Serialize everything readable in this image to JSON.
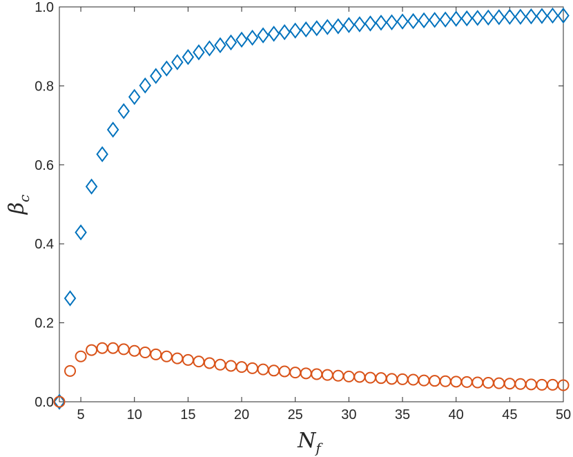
{
  "chart_data": {
    "type": "scatter",
    "xlabel": "N",
    "xlabel_sub": "f",
    "ylabel": "β",
    "ylabel_sub": "c",
    "xlim": [
      3,
      50
    ],
    "ylim": [
      0,
      1
    ],
    "xticks": [
      5,
      10,
      15,
      20,
      25,
      30,
      35,
      40,
      45,
      50
    ],
    "yticks": [
      0.0,
      0.2,
      0.4,
      0.6,
      0.8,
      1.0
    ],
    "ytick_labels": [
      "0.0",
      "0.2",
      "0.4",
      "0.6",
      "0.8",
      "1.0"
    ],
    "grid": false,
    "series": [
      {
        "marker": "diamond",
        "color": "#0072BD",
        "x": [
          3,
          4,
          5,
          6,
          7,
          8,
          9,
          10,
          11,
          12,
          13,
          14,
          15,
          16,
          17,
          18,
          19,
          20,
          21,
          22,
          23,
          24,
          25,
          26,
          27,
          28,
          29,
          30,
          31,
          32,
          33,
          34,
          35,
          36,
          37,
          38,
          39,
          40,
          41,
          42,
          43,
          44,
          45,
          46,
          47,
          48,
          49,
          50
        ],
        "y": [
          0.0,
          0.262,
          0.429,
          0.545,
          0.627,
          0.689,
          0.736,
          0.772,
          0.801,
          0.825,
          0.844,
          0.86,
          0.873,
          0.885,
          0.895,
          0.903,
          0.91,
          0.917,
          0.922,
          0.928,
          0.932,
          0.936,
          0.94,
          0.943,
          0.946,
          0.949,
          0.951,
          0.954,
          0.956,
          0.958,
          0.96,
          0.961,
          0.963,
          0.964,
          0.966,
          0.967,
          0.968,
          0.97,
          0.971,
          0.972,
          0.973,
          0.974,
          0.975,
          0.975,
          0.976,
          0.977,
          0.978,
          0.978
        ]
      },
      {
        "marker": "circle",
        "color": "#D95319",
        "x": [
          3,
          4,
          5,
          6,
          7,
          8,
          9,
          10,
          11,
          12,
          13,
          14,
          15,
          16,
          17,
          18,
          19,
          20,
          21,
          22,
          23,
          24,
          25,
          26,
          27,
          28,
          29,
          30,
          31,
          32,
          33,
          34,
          35,
          36,
          37,
          38,
          39,
          40,
          41,
          42,
          43,
          44,
          45,
          46,
          47,
          48,
          49,
          50
        ],
        "y": [
          0.0,
          0.078,
          0.115,
          0.131,
          0.136,
          0.136,
          0.133,
          0.129,
          0.125,
          0.12,
          0.115,
          0.11,
          0.106,
          0.102,
          0.098,
          0.094,
          0.091,
          0.088,
          0.085,
          0.082,
          0.079,
          0.077,
          0.074,
          0.072,
          0.07,
          0.068,
          0.066,
          0.064,
          0.063,
          0.061,
          0.06,
          0.058,
          0.057,
          0.056,
          0.054,
          0.053,
          0.052,
          0.051,
          0.05,
          0.049,
          0.048,
          0.047,
          0.046,
          0.045,
          0.044,
          0.043,
          0.043,
          0.042
        ]
      }
    ]
  }
}
